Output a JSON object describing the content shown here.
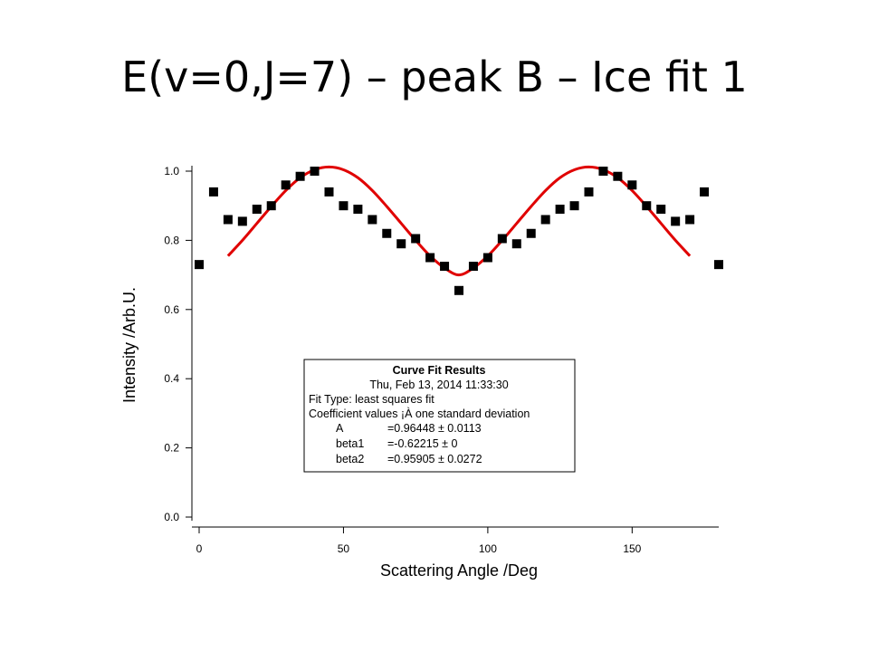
{
  "slide": {
    "title": "E(v=0,J=7) – peak B – Ice fit 1"
  },
  "chart_data": {
    "type": "scatter",
    "xlabel": "Scattering Angle /Deg",
    "ylabel": "Intensity /Arb.U.",
    "xlim": [
      0,
      180
    ],
    "ylim": [
      0,
      1.0
    ],
    "x_ticks": [
      0,
      50,
      100,
      150
    ],
    "y_ticks": [
      0.0,
      0.2,
      0.4,
      0.6,
      0.8,
      1.0
    ],
    "x_tick_labels": [
      "0",
      "50",
      "100",
      "150"
    ],
    "y_tick_labels": [
      "0.0",
      "0.2",
      "0.4",
      "0.6",
      "0.8",
      "1.0"
    ],
    "grid": false,
    "colors": {
      "points": "#000000",
      "fit": "#e00000"
    },
    "series": [
      {
        "kind": "points",
        "marker": "square",
        "x": [
          0,
          5,
          10,
          15,
          20,
          25,
          30,
          35,
          40,
          45,
          50,
          55,
          60,
          65,
          70,
          75,
          80,
          85,
          90,
          95,
          100,
          105,
          110,
          115,
          120,
          125,
          130,
          135,
          140,
          145,
          150,
          155,
          160,
          165,
          170,
          175,
          180
        ],
        "y": [
          0.73,
          0.94,
          0.86,
          0.855,
          0.89,
          0.9,
          0.96,
          0.985,
          1.0,
          0.94,
          0.9,
          0.89,
          0.86,
          0.82,
          0.79,
          0.805,
          0.75,
          0.725,
          0.655,
          0.725,
          0.75,
          0.805,
          0.79,
          0.82,
          0.86,
          0.89,
          0.9,
          0.94,
          1.0,
          0.985,
          0.96,
          0.9,
          0.89,
          0.855,
          0.86,
          0.94,
          0.73
        ]
      },
      {
        "kind": "fit",
        "x": [
          10,
          15,
          20,
          25,
          30,
          35,
          40,
          45,
          50,
          55,
          60,
          65,
          70,
          75,
          80,
          85,
          90,
          95,
          100,
          105,
          110,
          115,
          120,
          125,
          130,
          135,
          140,
          145,
          150,
          155,
          160,
          165,
          170
        ],
        "y": [
          0.755,
          0.8,
          0.849,
          0.898,
          0.944,
          0.981,
          1.004,
          1.012,
          1.004,
          0.981,
          0.944,
          0.898,
          0.849,
          0.8,
          0.755,
          0.72,
          0.7,
          0.72,
          0.755,
          0.8,
          0.849,
          0.898,
          0.944,
          0.981,
          1.004,
          1.012,
          1.004,
          0.981,
          0.944,
          0.898,
          0.849,
          0.8,
          0.755
        ]
      }
    ],
    "annotations": {
      "fit_results": {
        "heading": "Curve Fit Results",
        "timestamp": "Thu, Feb 13, 2014 11:33:30",
        "fit_type": "Fit Type: least squares fit",
        "coef_note": "Coefficient values ¡À one standard deviation",
        "coefficients": [
          {
            "name": "A",
            "value": "=0.96448 ± 0.0113"
          },
          {
            "name": "beta1",
            "value": "=-0.62215 ± 0"
          },
          {
            "name": "beta2",
            "value": "=0.95905 ± 0.0272"
          }
        ]
      }
    }
  }
}
